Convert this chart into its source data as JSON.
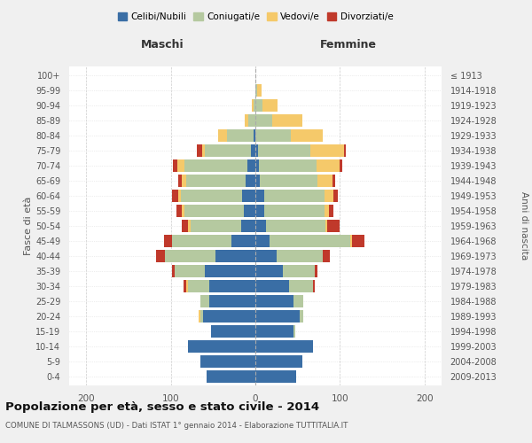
{
  "age_groups": [
    "0-4",
    "5-9",
    "10-14",
    "15-19",
    "20-24",
    "25-29",
    "30-34",
    "35-39",
    "40-44",
    "45-49",
    "50-54",
    "55-59",
    "60-64",
    "65-69",
    "70-74",
    "75-79",
    "80-84",
    "85-89",
    "90-94",
    "95-99",
    "100+"
  ],
  "birth_years": [
    "2009-2013",
    "2004-2008",
    "1999-2003",
    "1994-1998",
    "1989-1993",
    "1984-1988",
    "1979-1983",
    "1974-1978",
    "1969-1973",
    "1964-1968",
    "1959-1963",
    "1954-1958",
    "1949-1953",
    "1944-1948",
    "1939-1943",
    "1934-1938",
    "1929-1933",
    "1924-1928",
    "1919-1923",
    "1914-1918",
    "≤ 1913"
  ],
  "maschi": {
    "celibi": [
      58,
      65,
      80,
      52,
      62,
      55,
      55,
      60,
      47,
      28,
      17,
      14,
      16,
      12,
      9,
      5,
      2,
      0,
      0,
      0,
      0
    ],
    "coniugati": [
      0,
      0,
      0,
      0,
      3,
      10,
      25,
      35,
      60,
      70,
      60,
      70,
      72,
      70,
      75,
      55,
      32,
      8,
      2,
      0,
      0
    ],
    "vedovi": [
      0,
      0,
      0,
      0,
      2,
      0,
      2,
      0,
      0,
      0,
      3,
      3,
      3,
      5,
      8,
      3,
      10,
      5,
      2,
      0,
      0
    ],
    "divorziati": [
      0,
      0,
      0,
      0,
      0,
      0,
      3,
      4,
      10,
      10,
      7,
      6,
      7,
      4,
      5,
      6,
      0,
      0,
      0,
      0,
      0
    ]
  },
  "femmine": {
    "nubili": [
      48,
      55,
      68,
      45,
      52,
      45,
      40,
      32,
      25,
      17,
      13,
      10,
      10,
      5,
      4,
      3,
      0,
      0,
      0,
      0,
      0
    ],
    "coniugate": [
      0,
      0,
      0,
      2,
      5,
      12,
      28,
      38,
      55,
      95,
      70,
      72,
      72,
      68,
      68,
      62,
      42,
      20,
      8,
      2,
      0
    ],
    "vedove": [
      0,
      0,
      0,
      0,
      0,
      0,
      0,
      0,
      0,
      2,
      2,
      5,
      10,
      18,
      28,
      40,
      38,
      35,
      18,
      5,
      0
    ],
    "divorziate": [
      0,
      0,
      0,
      0,
      0,
      0,
      2,
      3,
      8,
      15,
      14,
      5,
      5,
      3,
      3,
      2,
      0,
      0,
      0,
      0,
      0
    ]
  },
  "colors": {
    "celibi": "#3a6ea5",
    "coniugati": "#b5c9a0",
    "vedovi": "#f5c96a",
    "divorziati": "#c0392b"
  },
  "title": "Popolazione per età, sesso e stato civile - 2014",
  "subtitle": "COMUNE DI TALMASSONS (UD) - Dati ISTAT 1° gennaio 2014 - Elaborazione TUTTITALIA.IT",
  "xlabel_left": "Maschi",
  "xlabel_right": "Femmine",
  "ylabel_left": "Fasce di età",
  "ylabel_right": "Anni di nascita",
  "xlim": 220,
  "bg_color": "#f0f0f0",
  "plot_bg": "#ffffff",
  "legend_labels": [
    "Celibi/Nubili",
    "Coniugati/e",
    "Vedovi/e",
    "Divorziati/e"
  ]
}
